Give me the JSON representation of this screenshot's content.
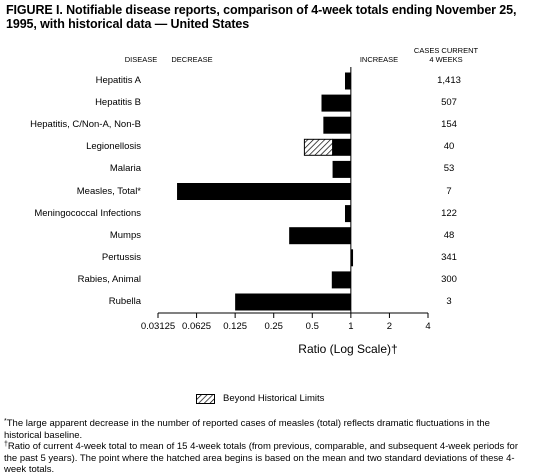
{
  "title": "FIGURE I. Notifiable disease reports, comparison of 4-week totals ending November 25, 1995, with historical data — United States",
  "headers": {
    "disease": "DISEASE",
    "decrease": "DECREASE",
    "increase": "INCREASE",
    "cases_line1": "CASES CURRENT",
    "cases_line2": "4 WEEKS"
  },
  "legend": {
    "label": "Beyond Historical Limits"
  },
  "footnotes": {
    "star_mark": "*",
    "star_text": "The large apparent decrease in the number of reported cases of measles (total) reflects dramatic fluctuations in the historical baseline.",
    "dagger_mark": "†",
    "dagger_text": "Ratio of current 4-week total to mean of 15 4-week totals (from previous, comparable, and subsequent 4-week periods for the past 5 years). The point where the hatched area begins is based on the mean and two standard deviations of these 4-week totals."
  },
  "chart_data": {
    "type": "bar",
    "orientation": "horizontal",
    "xlabel": "Ratio (Log Scale)†",
    "xscale": "log2",
    "xlim": [
      0.03125,
      4
    ],
    "xticks": [
      "0.03125",
      "0.0625",
      "0.125",
      "0.25",
      "0.5",
      "1",
      "2",
      "4"
    ],
    "xtick_values": [
      0.03125,
      0.0625,
      0.125,
      0.25,
      0.5,
      1,
      2,
      4
    ],
    "baseline": 1,
    "categories": [
      "Hepatitis A",
      "Hepatitis B",
      "Hepatitis, C/Non-A, Non-B",
      "Legionellosis",
      "Malaria",
      "Measles, Total*",
      "Meningococcal Infections",
      "Mumps",
      "Pertussis",
      "Rabies, Animal",
      "Rubella"
    ],
    "values": [
      0.9,
      0.59,
      0.61,
      0.43,
      0.72,
      0.044,
      0.9,
      0.33,
      1.04,
      0.71,
      0.125
    ],
    "hatched_from": [
      null,
      null,
      null,
      0.72,
      null,
      null,
      null,
      null,
      null,
      null,
      null
    ],
    "cases_current_4_weeks": [
      "1,413",
      "507",
      "154",
      "40",
      "53",
      "7",
      "122",
      "48",
      "341",
      "300",
      "3"
    ],
    "colors": {
      "bar": "#000000",
      "hatch": "#000000",
      "background": "#ffffff"
    },
    "legend": [
      "Beyond Historical Limits"
    ],
    "grid": false
  }
}
